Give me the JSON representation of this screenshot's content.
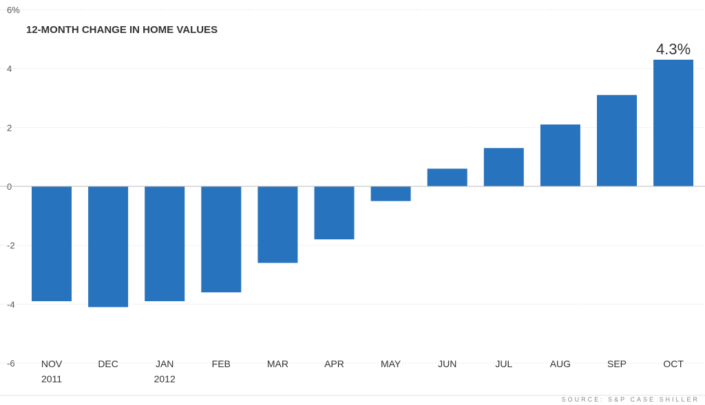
{
  "chart_data": {
    "type": "bar",
    "title": "12-MONTH CHANGE IN HOME VALUES",
    "unit_label": "6%",
    "categories": [
      "NOV",
      "DEC",
      "JAN",
      "FEB",
      "MAR",
      "APR",
      "MAY",
      "JUN",
      "JUL",
      "AUG",
      "SEP",
      "OCT"
    ],
    "category_sublabels": [
      "2011",
      "",
      "2012",
      "",
      "",
      "",
      "",
      "",
      "",
      "",
      "",
      ""
    ],
    "values": [
      -3.9,
      -4.1,
      -3.9,
      -3.6,
      -2.6,
      -1.8,
      -0.5,
      0.6,
      1.3,
      2.1,
      3.1,
      4.3
    ],
    "data_labels": [
      {
        "index": 11,
        "text": "4.3%"
      }
    ],
    "yticks": [
      6,
      4,
      2,
      0,
      -2,
      -4,
      -6
    ],
    "ytick_labels": [
      "6%",
      "4",
      "2",
      "0",
      "-2",
      "-4",
      "-6"
    ],
    "ylim": [
      -6,
      6
    ],
    "grid": true,
    "bar_color": "#2873bd",
    "source": "SOURCE: S&P CASE SHILLER"
  }
}
